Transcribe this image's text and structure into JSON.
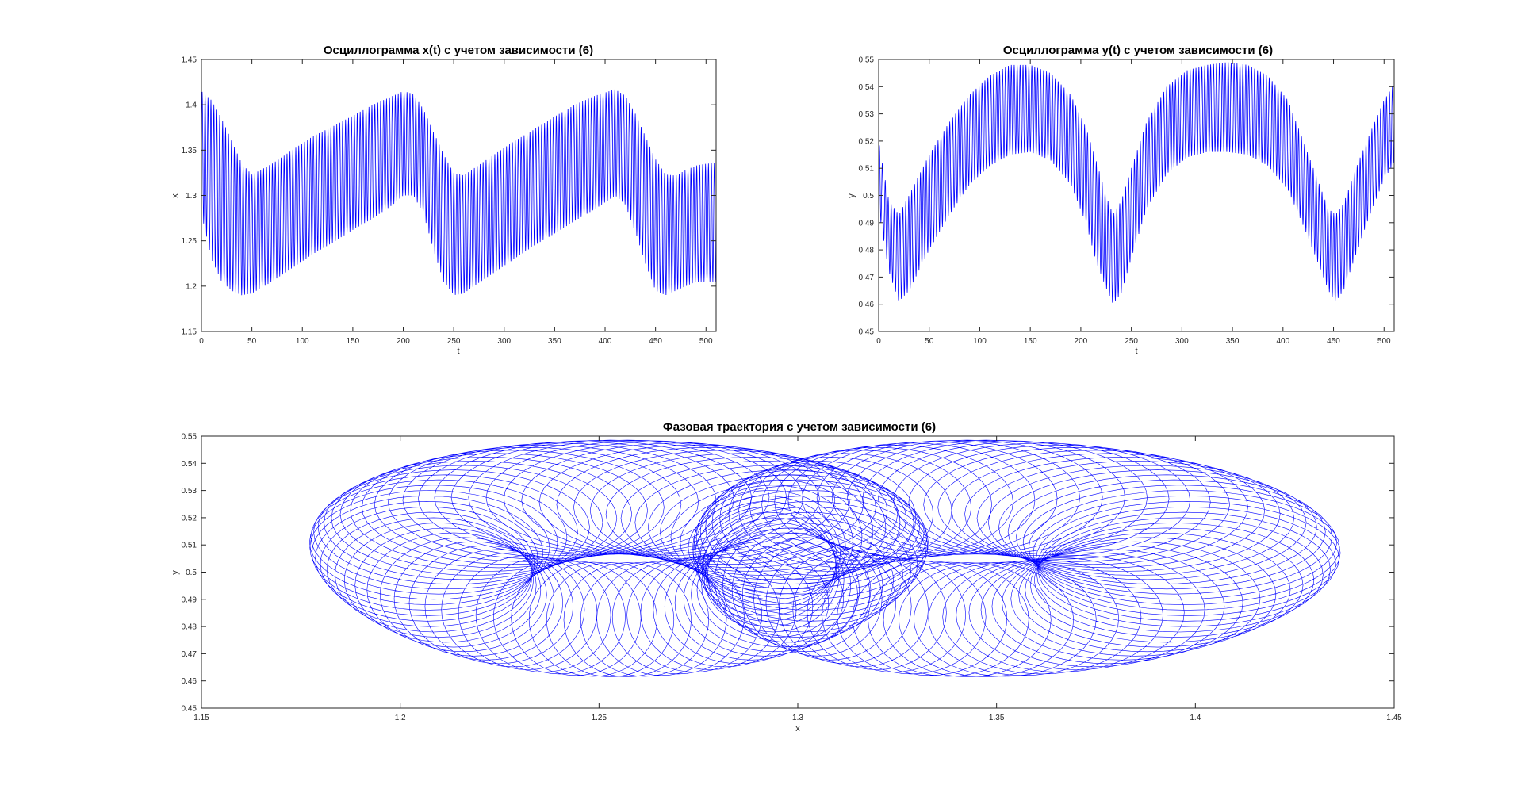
{
  "chart_data": [
    {
      "id": "xt",
      "type": "line",
      "title": "Осциллограмма x(t) с учетом зависимости (6)",
      "xlabel": "t",
      "ylabel": "x",
      "xlim": [
        0,
        510
      ],
      "ylim": [
        1.15,
        1.45
      ],
      "xticks": [
        "0",
        "50",
        "100",
        "150",
        "200",
        "250",
        "300",
        "350",
        "400",
        "450",
        "500"
      ],
      "yticks": [
        "1.15",
        "1.2",
        "1.25",
        "1.3",
        "1.35",
        "1.4",
        "1.45"
      ],
      "grid": false,
      "color": "#0000ff",
      "series": [
        {
          "x": [
            0,
            10,
            20,
            30,
            40,
            50,
            70,
            90,
            110,
            130,
            150,
            170,
            190,
            200,
            210,
            220,
            230,
            240,
            250,
            260,
            270,
            290,
            310,
            330,
            350,
            370,
            390,
            410,
            420,
            430,
            440,
            450,
            460,
            470,
            480,
            490,
            500,
            510
          ],
          "upper": [
            1.415,
            1.405,
            1.385,
            1.36,
            1.335,
            1.323,
            1.335,
            1.35,
            1.365,
            1.376,
            1.388,
            1.4,
            1.41,
            1.415,
            1.412,
            1.395,
            1.37,
            1.345,
            1.325,
            1.322,
            1.33,
            1.345,
            1.36,
            1.373,
            1.387,
            1.4,
            1.41,
            1.417,
            1.41,
            1.39,
            1.365,
            1.34,
            1.323,
            1.322,
            1.328,
            1.333,
            1.335,
            1.336
          ],
          "lower": [
            1.28,
            1.23,
            1.205,
            1.195,
            1.19,
            1.192,
            1.205,
            1.22,
            1.235,
            1.248,
            1.262,
            1.275,
            1.29,
            1.3,
            1.3,
            1.28,
            1.24,
            1.205,
            1.19,
            1.192,
            1.2,
            1.215,
            1.23,
            1.245,
            1.258,
            1.272,
            1.285,
            1.3,
            1.29,
            1.26,
            1.225,
            1.195,
            1.19,
            1.195,
            1.2,
            1.205,
            1.205,
            1.205
          ]
        }
      ]
    },
    {
      "id": "yt",
      "type": "line",
      "title": "Осциллограмма y(t) с учетом зависимости (6)",
      "xlabel": "t",
      "ylabel": "y",
      "xlim": [
        0,
        510
      ],
      "ylim": [
        0.45,
        0.55
      ],
      "xticks": [
        "0",
        "50",
        "100",
        "150",
        "200",
        "250",
        "300",
        "350",
        "400",
        "450",
        "500"
      ],
      "yticks": [
        "0.45",
        "0.46",
        "0.47",
        "0.48",
        "0.49",
        "0.5",
        "0.51",
        "0.52",
        "0.53",
        "0.54",
        "0.55"
      ],
      "grid": false,
      "color": "#0000ff",
      "series": [
        {
          "x": [
            0,
            10,
            20,
            30,
            50,
            70,
            90,
            110,
            130,
            150,
            170,
            190,
            205,
            215,
            225,
            232,
            240,
            250,
            265,
            285,
            305,
            325,
            345,
            365,
            385,
            405,
            420,
            435,
            445,
            452,
            460,
            470,
            485,
            500,
            510
          ],
          "upper": [
            0.52,
            0.498,
            0.493,
            0.5,
            0.515,
            0.527,
            0.537,
            0.544,
            0.548,
            0.548,
            0.545,
            0.537,
            0.525,
            0.513,
            0.5,
            0.493,
            0.498,
            0.51,
            0.527,
            0.54,
            0.546,
            0.548,
            0.549,
            0.548,
            0.544,
            0.535,
            0.52,
            0.505,
            0.495,
            0.493,
            0.497,
            0.508,
            0.522,
            0.535,
            0.541
          ],
          "lower": [
            0.495,
            0.472,
            0.461,
            0.465,
            0.48,
            0.493,
            0.504,
            0.511,
            0.515,
            0.516,
            0.513,
            0.504,
            0.49,
            0.476,
            0.466,
            0.46,
            0.464,
            0.477,
            0.495,
            0.508,
            0.514,
            0.516,
            0.516,
            0.515,
            0.511,
            0.502,
            0.489,
            0.475,
            0.465,
            0.461,
            0.465,
            0.476,
            0.492,
            0.506,
            0.512
          ]
        }
      ]
    },
    {
      "id": "phase",
      "type": "line",
      "title": "Фазовая траектория с учетом зависимости (6)",
      "xlabel": "x",
      "ylabel": "y",
      "xlim": [
        1.15,
        1.45
      ],
      "ylim": [
        0.45,
        0.55
      ],
      "xticks": [
        "1.15",
        "1.2",
        "1.25",
        "1.3",
        "1.35",
        "1.4",
        "1.45"
      ],
      "yticks": [
        "0.45",
        "0.46",
        "0.47",
        "0.48",
        "0.49",
        "0.5",
        "0.51",
        "0.52",
        "0.53",
        "0.54",
        "0.55"
      ],
      "grid": false,
      "color": "#0000ff",
      "series": [
        {
          "x": [
            1.19,
            1.21,
            1.25,
            1.3,
            1.35,
            1.39,
            1.415,
            1.39,
            1.35,
            1.3,
            1.25,
            1.21,
            1.19
          ],
          "y": [
            0.505,
            0.525,
            0.548,
            0.54,
            0.548,
            0.528,
            0.502,
            0.47,
            0.461,
            0.47,
            0.461,
            0.478,
            0.505
          ]
        }
      ]
    }
  ]
}
